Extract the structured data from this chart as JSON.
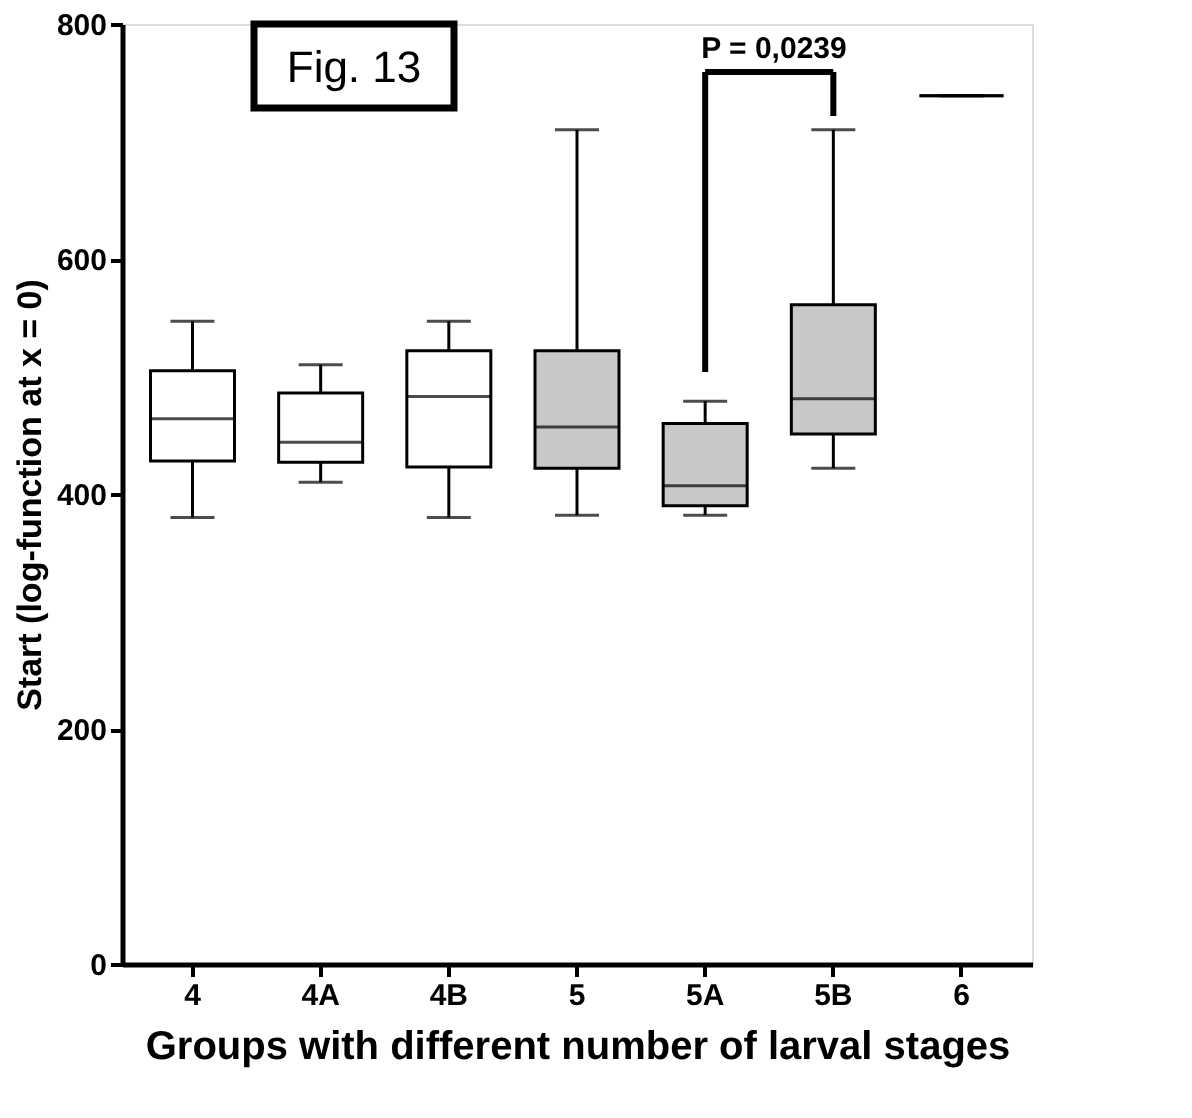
{
  "chart_data": {
    "type": "box",
    "xlabel": "Groups with different number of larval stages",
    "ylabel": "Start (log-function at x = 0)",
    "categories": [
      "4",
      "4A",
      "4B",
      "5",
      "5A",
      "5B",
      "6"
    ],
    "boxes": [
      {
        "low": 380,
        "q1": 428,
        "median": 464,
        "q3": 505,
        "high": 547
      },
      {
        "low": 410,
        "q1": 427,
        "median": 444,
        "q3": 486,
        "high": 510
      },
      {
        "low": 380,
        "q1": 423,
        "median": 483,
        "q3": 522,
        "high": 547
      },
      {
        "low": 382,
        "q1": 422,
        "median": 457,
        "q3": 522,
        "high": 710
      },
      {
        "low": 382,
        "q1": 390,
        "median": 407,
        "q3": 460,
        "high": 479
      },
      {
        "low": 422,
        "q1": 451,
        "median": 481,
        "q3": 561,
        "high": 710
      },
      {
        "low": 739,
        "q1": 739,
        "median": 739,
        "q3": 739,
        "high": 739
      }
    ],
    "colors": [
      "#ffffff",
      "#ffffff",
      "#ffffff",
      "#c8c8c8",
      "#c8c8c8",
      "#c8c8c8",
      "#000000"
    ],
    "ylim": [
      0,
      800
    ],
    "yticks": [
      0,
      200,
      400,
      600,
      800
    ],
    "annotations": [
      "Fig. 13",
      "P = 0,0239"
    ]
  }
}
